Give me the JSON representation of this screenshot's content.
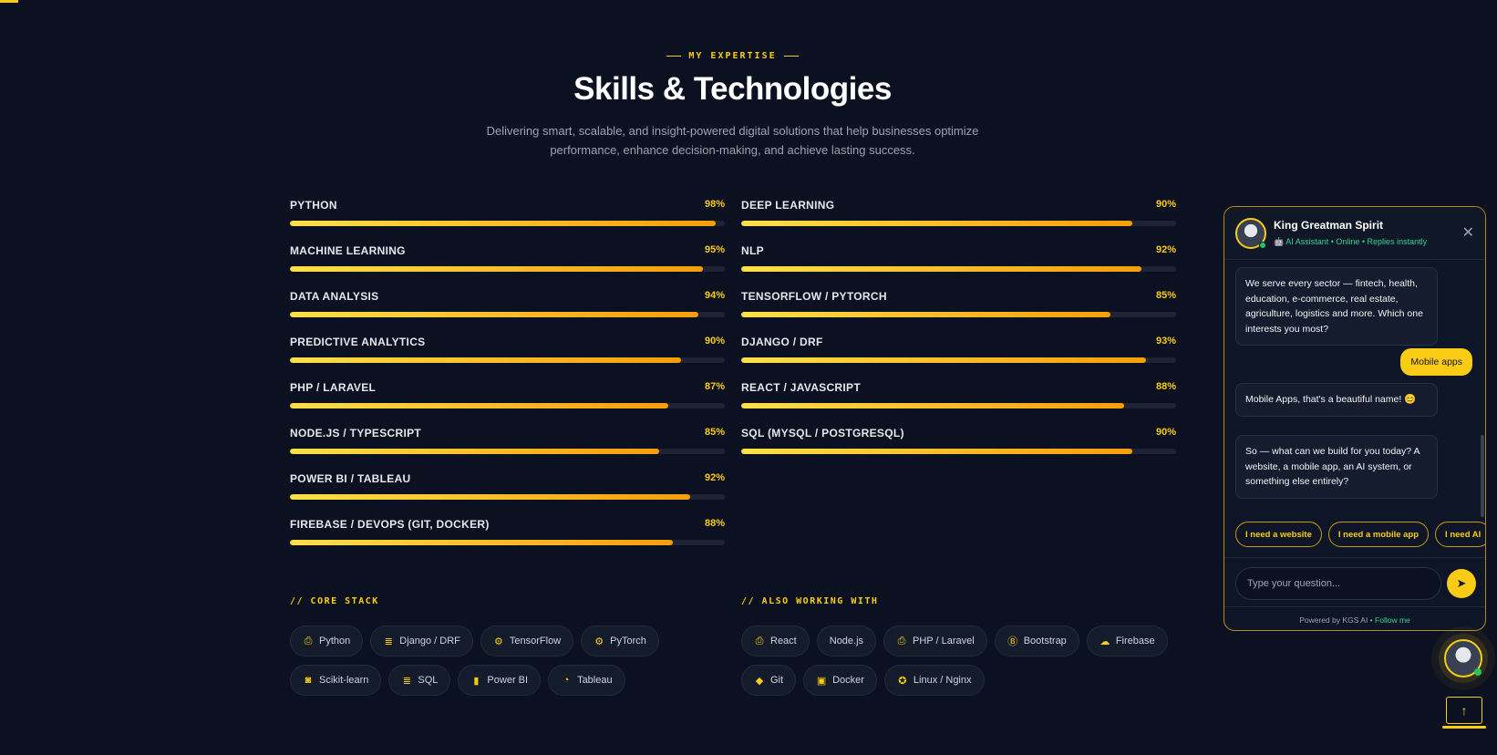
{
  "header": {
    "eyebrow": "MY EXPERTISE",
    "title": "Skills & Technologies",
    "subtitle": "Delivering smart, scalable, and insight-powered digital solutions that help businesses optimize performance, enhance decision-making, and achieve lasting success."
  },
  "skills_left": [
    {
      "name": "PYTHON",
      "percent": 98,
      "label": "98%"
    },
    {
      "name": "MACHINE LEARNING",
      "percent": 95,
      "label": "95%"
    },
    {
      "name": "DATA ANALYSIS",
      "percent": 94,
      "label": "94%"
    },
    {
      "name": "PREDICTIVE ANALYTICS",
      "percent": 90,
      "label": "90%"
    },
    {
      "name": "PHP / LARAVEL",
      "percent": 87,
      "label": "87%"
    },
    {
      "name": "NODE.JS / TYPESCRIPT",
      "percent": 85,
      "label": "85%"
    },
    {
      "name": "POWER BI / TABLEAU",
      "percent": 92,
      "label": "92%"
    },
    {
      "name": "FIREBASE / DEVOPS (GIT, DOCKER)",
      "percent": 88,
      "label": "88%"
    }
  ],
  "skills_right": [
    {
      "name": "DEEP LEARNING",
      "percent": 90,
      "label": "90%"
    },
    {
      "name": "NLP",
      "percent": 92,
      "label": "92%"
    },
    {
      "name": "TENSORFLOW / PYTORCH",
      "percent": 85,
      "label": "85%"
    },
    {
      "name": "DJANGO / DRF",
      "percent": 93,
      "label": "93%"
    },
    {
      "name": "REACT / JAVASCRIPT",
      "percent": 88,
      "label": "88%"
    },
    {
      "name": "SQL (MYSQL / POSTGRESQL)",
      "percent": 90,
      "label": "90%"
    }
  ],
  "core_stack": {
    "title": "// CORE STACK",
    "items": [
      {
        "label": "Python",
        "icon": "file-code-icon",
        "glyph": "⎙"
      },
      {
        "label": "Django / DRF",
        "icon": "database-icon",
        "glyph": "≣"
      },
      {
        "label": "TensorFlow",
        "icon": "gear-icon",
        "glyph": "⚙"
      },
      {
        "label": "PyTorch",
        "icon": "gear-icon",
        "glyph": "⚙"
      },
      {
        "label": "Scikit-learn",
        "icon": "robot-icon",
        "glyph": "◙"
      },
      {
        "label": "SQL",
        "icon": "database-icon",
        "glyph": "≣"
      },
      {
        "label": "Power BI",
        "icon": "bar-chart-icon",
        "glyph": "▮"
      },
      {
        "label": "Tableau",
        "icon": "pie-chart-icon",
        "glyph": "◔"
      }
    ]
  },
  "also_working": {
    "title": "// ALSO WORKING WITH",
    "items": [
      {
        "label": "React",
        "icon": "file-code-icon",
        "glyph": "⎙"
      },
      {
        "label": "Node.js",
        "icon": "",
        "glyph": ""
      },
      {
        "label": "PHP / Laravel",
        "icon": "file-code-icon",
        "glyph": "⎙"
      },
      {
        "label": "Bootstrap",
        "icon": "bootstrap-icon",
        "glyph": "Ⓑ"
      },
      {
        "label": "Firebase",
        "icon": "cloud-icon",
        "glyph": "☁"
      },
      {
        "label": "Git",
        "icon": "git-icon",
        "glyph": "◆"
      },
      {
        "label": "Docker",
        "icon": "box-icon",
        "glyph": "▣"
      },
      {
        "label": "Linux / Nginx",
        "icon": "linux-icon",
        "glyph": "✪"
      }
    ]
  },
  "chat": {
    "name": "King Greatman Spirit",
    "status": "🤖 AI Assistant • Online • Replies instantly",
    "messages": [
      {
        "from": "bot",
        "text": "We serve every sector — fintech, health, education, e-commerce, real estate, agriculture, logistics and more. Which one interests you most?"
      },
      {
        "from": "user",
        "text": "Mobile apps"
      },
      {
        "from": "bot",
        "text": "Mobile Apps, that's a beautiful name! 😊"
      },
      {
        "from": "bot",
        "text": "So — what can we build for you today? A website, a mobile app, an AI system, or something else entirely?"
      }
    ],
    "quick_replies": [
      "I need a website",
      "I need a mobile app",
      "I need AI"
    ],
    "input_placeholder": "Type your question...",
    "footer_text": "Powered by KGS AI •",
    "footer_link": "Follow me"
  },
  "colors": {
    "accent": "#facc15",
    "background": "#0b1120",
    "online": "#22c55e"
  }
}
